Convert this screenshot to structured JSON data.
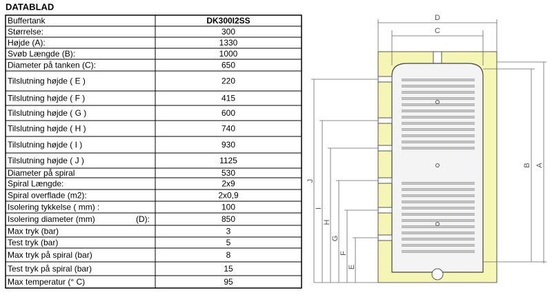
{
  "title": "DATABLAD",
  "table": {
    "rows": [
      [
        "Buffertank",
        "DK300I2SS"
      ],
      [
        "Størrelse:",
        "300"
      ],
      [
        "Højde (A):",
        "1330"
      ],
      [
        "Svøb Længde (B):",
        "1000"
      ],
      [
        "Diameter på tanken (C):",
        "650"
      ],
      [
        "Tilslutning højde ( E )",
        "220"
      ],
      [
        "Tilslutning højde ( F )",
        "415"
      ],
      [
        "Tilslutning højde ( G )",
        "600"
      ],
      [
        "Tilslutning højde ( H )",
        "740"
      ],
      [
        "Tilslutning højde ( I )",
        "930"
      ],
      [
        "Tilslutning højde ( J )",
        "1125"
      ],
      [
        "Diameter på spiral",
        "530"
      ],
      [
        "Spiral Længde:",
        "2x9"
      ],
      [
        "Spiral overflade (m2):",
        "2x0,9"
      ],
      [
        "Isolering tykkelse ( mm) :",
        "100"
      ],
      [
        "Isolering diameter (mm)",
        "(D):",
        "850"
      ],
      [
        "Max tryk (bar)",
        "3"
      ],
      [
        "Test tryk (bar)",
        "5"
      ],
      [
        "Max tryk på spiral (bar)",
        "8"
      ],
      [
        "Test tryk på spiral (bar)",
        "15"
      ],
      [
        "Max temperatur (° C)",
        "95"
      ]
    ]
  },
  "diagram": {
    "labels": {
      "D": "D",
      "C": "C",
      "B": "B",
      "A": "A",
      "J": "J",
      "I": "I",
      "H": "H",
      "G": "G",
      "F": "F",
      "E": "E"
    }
  }
}
